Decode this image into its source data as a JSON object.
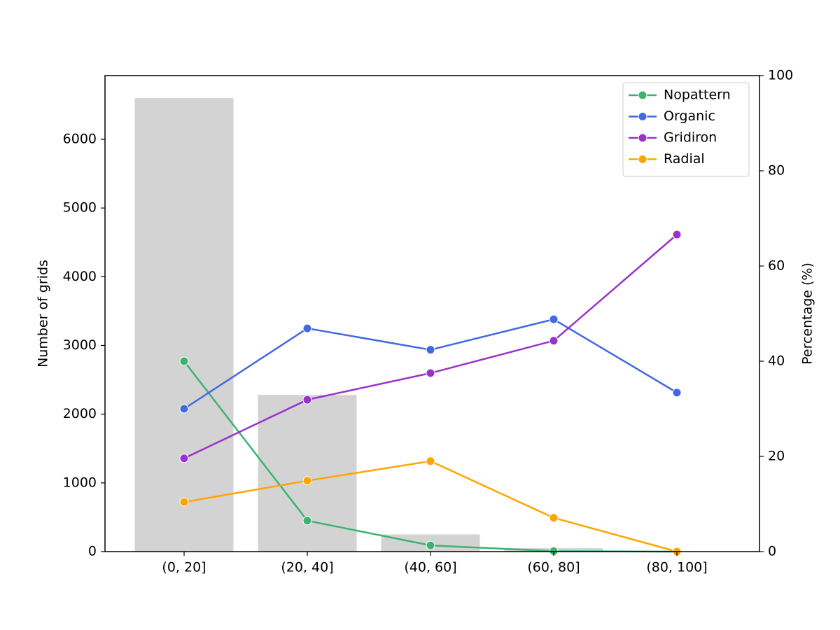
{
  "chart_data": {
    "type": "bar_line",
    "ylabel": "Number of grids",
    "y2label": "Percentage (%)",
    "categories": [
      "(0, 20]",
      "(20, 40]",
      "(40, 60]",
      "(60, 80]",
      "(80, 100]"
    ],
    "bars": {
      "color": "#d3d3d3",
      "values": [
        6600,
        2280,
        250,
        50,
        5
      ]
    },
    "series": [
      {
        "name": "Nopattern",
        "color": "#3cb371",
        "axis": "y2",
        "values": [
          40,
          6.5,
          1.3,
          0.1,
          0
        ]
      },
      {
        "name": "Organic",
        "color": "#4169e1",
        "axis": "y2",
        "values": [
          30,
          46.9,
          42.4,
          48.8,
          33.4
        ]
      },
      {
        "name": "Gridiron",
        "color": "#9932cc",
        "axis": "y2",
        "values": [
          19.6,
          31.9,
          37.5,
          44.3,
          66.6
        ]
      },
      {
        "name": "Radial",
        "color": "#ffa500",
        "axis": "y2",
        "values": [
          10.4,
          14.9,
          19.0,
          7.1,
          0
        ]
      }
    ],
    "ylim": [
      0,
      6927
    ],
    "yticks": [
      0,
      1000,
      2000,
      3000,
      4000,
      5000,
      6000
    ],
    "y2lim": [
      0,
      100
    ],
    "y2ticks": [
      0,
      20,
      40,
      60,
      80,
      100
    ],
    "legend": "upper right"
  }
}
